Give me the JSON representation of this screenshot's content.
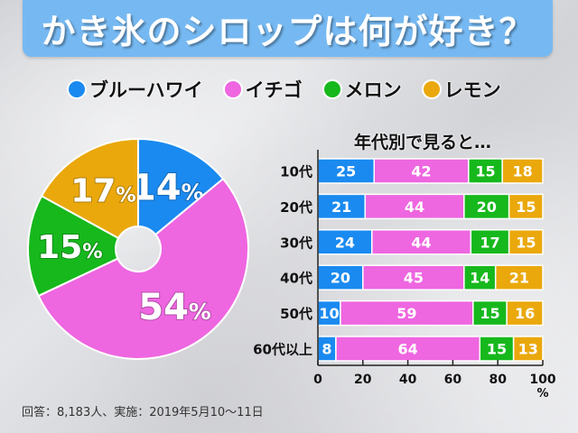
{
  "title": "かき氷のシロップは何が好き？",
  "legend": [
    {
      "label": "ブルーハワイ",
      "color": "#1a8af0"
    },
    {
      "label": "イチゴ",
      "color": "#ee66e0"
    },
    {
      "label": "メロン",
      "color": "#16b81c"
    },
    {
      "label": "レモン",
      "color": "#eaa80c"
    }
  ],
  "subtitle": "年代別で見ると…",
  "footer": "回答：8,183人、実施：2019年5月10〜11日",
  "chart_data": [
    {
      "type": "pie",
      "title": "かき氷のシロップは何が好き？",
      "style": "donut",
      "labels": [
        "ブルーハワイ",
        "イチゴ",
        "メロン",
        "レモン"
      ],
      "values": [
        14,
        54,
        15,
        17
      ],
      "value_labels": [
        "14%",
        "54%",
        "15%",
        "17%"
      ],
      "colors": [
        "#1a8af0",
        "#ee66e0",
        "#16b81c",
        "#eaa80c"
      ],
      "start": "12 o'clock, clockwise"
    },
    {
      "type": "bar",
      "orientation": "horizontal",
      "stacked": true,
      "title": "年代別で見ると…",
      "categories": [
        "10代",
        "20代",
        "30代",
        "40代",
        "50代",
        "60代以上"
      ],
      "series": [
        {
          "name": "ブルーハワイ",
          "color": "#1a8af0",
          "values": [
            25,
            21,
            24,
            20,
            10,
            8
          ]
        },
        {
          "name": "イチゴ",
          "color": "#ee66e0",
          "values": [
            42,
            44,
            44,
            45,
            59,
            64
          ]
        },
        {
          "name": "メロン",
          "color": "#16b81c",
          "values": [
            15,
            20,
            17,
            14,
            15,
            15
          ]
        },
        {
          "name": "レモン",
          "color": "#eaa80c",
          "values": [
            18,
            15,
            15,
            21,
            16,
            13
          ]
        }
      ],
      "xlim": [
        0,
        100
      ],
      "xticks": [
        "0",
        "20",
        "40",
        "60",
        "80",
        "100"
      ],
      "xlabel": "%",
      "ylabel": "",
      "grid": false,
      "legend": "top (shared with pie)"
    }
  ]
}
